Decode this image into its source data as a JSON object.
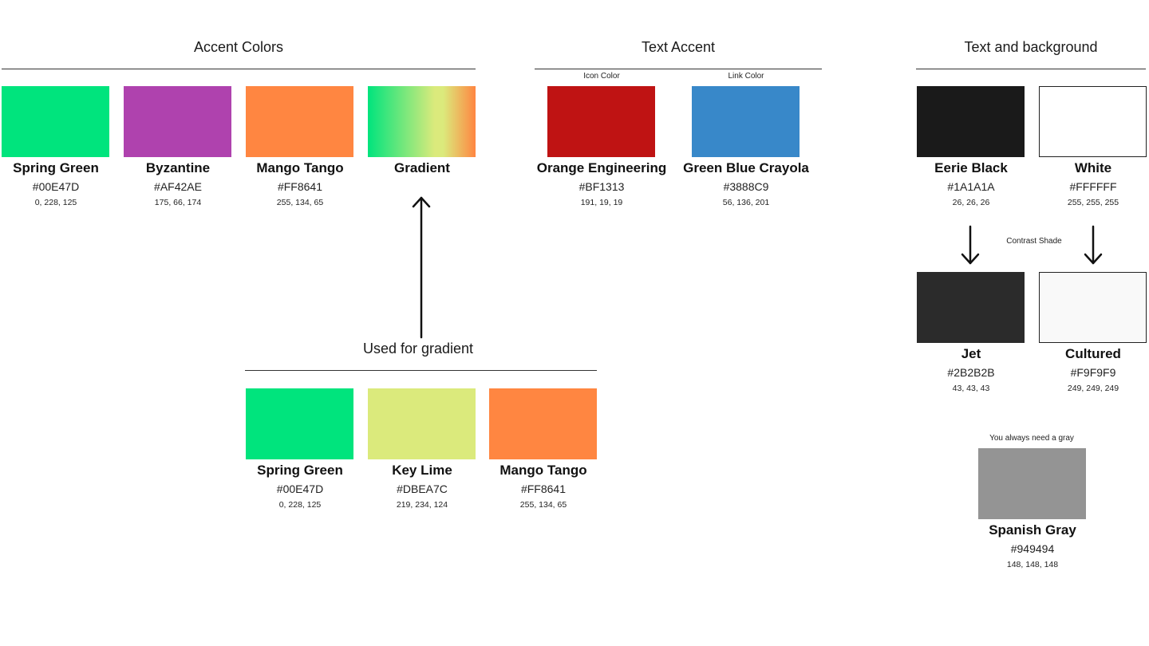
{
  "sections": {
    "accent": {
      "title": "Accent Colors",
      "swatches": [
        {
          "name": "Spring Green",
          "hex": "#00E47D",
          "rgb": "0, 228, 125"
        },
        {
          "name": "Byzantine",
          "hex": "#AF42AE",
          "rgb": "175, 66, 174"
        },
        {
          "name": "Mango Tango",
          "hex": "#FF8641",
          "rgb": "255, 134, 65"
        },
        {
          "name": "Gradient"
        }
      ]
    },
    "text_accent": {
      "title": "Text Accent",
      "swatches": [
        {
          "note": "Icon Color",
          "name": "Orange Engineering",
          "hex": "#BF1313",
          "rgb": "191, 19, 19"
        },
        {
          "note": "Link Color",
          "name": "Green Blue Crayola",
          "hex": "#3888C9",
          "rgb": "56, 136, 201"
        }
      ]
    },
    "text_background": {
      "title": "Text and background",
      "swatches": [
        {
          "name": "Eerie Black",
          "hex": "#1A1A1A",
          "rgb": "26, 26, 26"
        },
        {
          "name": "White",
          "hex": "#FFFFFF",
          "rgb": "255, 255, 255"
        }
      ],
      "contrast_note": "Contrast Shade",
      "contrast_swatches": [
        {
          "name": "Jet",
          "hex": "#2B2B2B",
          "rgb": "43, 43, 43"
        },
        {
          "name": "Cultured",
          "hex": "#F9F9F9",
          "rgb": "249, 249, 249"
        }
      ],
      "gray_note": "You always need a gray",
      "gray": {
        "name": "Spanish Gray",
        "hex": "#949494",
        "rgb": "148, 148, 148"
      }
    },
    "gradient": {
      "title": "Used for gradient",
      "swatches": [
        {
          "name": "Spring Green",
          "hex": "#00E47D",
          "rgb": "0, 228, 125"
        },
        {
          "name": "Key Lime",
          "hex": "#DBEA7C",
          "rgb": "219, 234, 124"
        },
        {
          "name": "Mango Tango",
          "hex": "#FF8641",
          "rgb": "255, 134, 65"
        }
      ]
    }
  }
}
